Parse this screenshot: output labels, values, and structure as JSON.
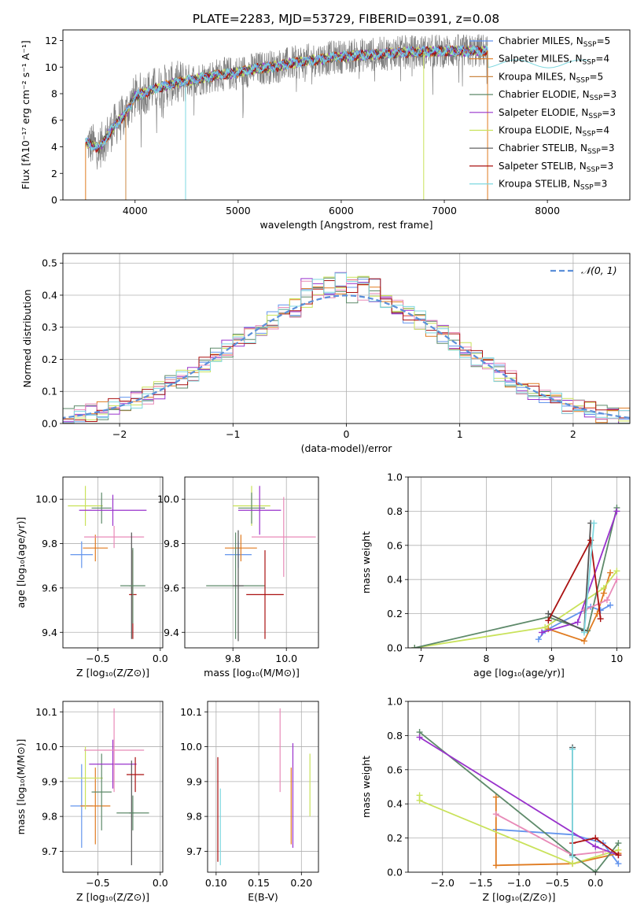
{
  "figure_title": "PLATE=2283, MJD=53729, FIBERID=0391, z=0.08",
  "colors": {
    "ChM": "#6495ED",
    "SaM": "#E07B20",
    "KrM": "#CC8844",
    "ChE": "#5E8A6A",
    "SaE": "#9932CC",
    "KrE": "#C9E25A",
    "ChS": "#555555",
    "SaS": "#AA1111",
    "KrS": "#7FD8E0",
    "pink": "#E88AB8"
  },
  "chart_data": [
    {
      "type": "line",
      "title": "PLATE=2283, MJD=53729, FIBERID=0391, z=0.08",
      "xlabel": "wavelength [Angstrom, rest frame]",
      "ylabel": "Flux [fλ10⁻¹⁷ erg cm⁻² s⁻¹ A⁻¹]",
      "xlim": [
        3300,
        8800
      ],
      "ylim": [
        0,
        12.8
      ],
      "xticks": [
        4000,
        5000,
        6000,
        7000,
        8000
      ],
      "yticks": [
        0,
        2,
        4,
        6,
        8,
        10,
        12
      ],
      "grid": false,
      "legend_position": "top-right",
      "legend": [
        {
          "label": "Chabrier MILES, N",
          "sub": "SSP",
          "suffix": "=5",
          "color": "ChM"
        },
        {
          "label": "Salpeter MILES, N",
          "sub": "SSP",
          "suffix": "=4",
          "color": "SaM"
        },
        {
          "label": "Kroupa MILES, N",
          "sub": "SSP",
          "suffix": "=5",
          "color": "KrM"
        },
        {
          "label": "Chabrier ELODIE, N",
          "sub": "SSP",
          "suffix": "=3",
          "color": "ChE"
        },
        {
          "label": "Salpeter ELODIE, N",
          "sub": "SSP",
          "suffix": "=3",
          "color": "SaE"
        },
        {
          "label": "Kroupa ELODIE, N",
          "sub": "SSP",
          "suffix": "=4",
          "color": "KrE"
        },
        {
          "label": "Chabrier STELIB, N",
          "sub": "SSP",
          "suffix": "=3",
          "color": "ChS"
        },
        {
          "label": "Salpeter STELIB, N",
          "sub": "SSP",
          "suffix": "=3",
          "color": "SaS"
        },
        {
          "label": "Kroupa STELIB, N",
          "sub": "SSP",
          "suffix": "=3",
          "color": "KrS"
        }
      ],
      "continuum": [
        [
          3540,
          4.3
        ],
        [
          3650,
          3.9
        ],
        [
          3800,
          5.6
        ],
        [
          3900,
          6.4
        ],
        [
          4000,
          7.8
        ],
        [
          4200,
          8.4
        ],
        [
          4400,
          8.8
        ],
        [
          4600,
          9.1
        ],
        [
          4800,
          9.4
        ],
        [
          5000,
          9.6
        ],
        [
          5200,
          9.9
        ],
        [
          5400,
          10.1
        ],
        [
          5600,
          10.4
        ],
        [
          5800,
          10.6
        ],
        [
          6000,
          10.8
        ],
        [
          6200,
          10.9
        ],
        [
          6400,
          11.0
        ],
        [
          6600,
          11.1
        ],
        [
          6800,
          11.15
        ],
        [
          7000,
          11.2
        ],
        [
          7200,
          11.2
        ],
        [
          7420,
          11.25
        ]
      ],
      "data_range": [
        3540,
        7420
      ],
      "model_range": [
        3500,
        8400
      ]
    },
    {
      "type": "bar",
      "xlabel": "(data-model)/error",
      "ylabel": "Normed distribution",
      "xlim": [
        -2.5,
        2.5
      ],
      "ylim": [
        0,
        0.53
      ],
      "xticks": [
        -2,
        -1,
        0,
        1,
        2
      ],
      "yticks": [
        0.0,
        0.1,
        0.2,
        0.3,
        0.4,
        0.5
      ],
      "grid": true,
      "legend_position": "top-right",
      "legend": [
        {
          "label": "𝒩(0, 1)",
          "color": "#5B8FD9"
        }
      ],
      "bin_width": 0.1,
      "gaussian": {
        "mu": 0,
        "sigma": 1
      }
    },
    {
      "type": "scatter",
      "xlabel": "Z [log₁₀(Z/Z⊙)]",
      "ylabel": "age  [log₁₀(age/yr)]",
      "xlim": [
        -0.78,
        0.02
      ],
      "ylim": [
        9.33,
        10.1
      ],
      "xticks": [
        -0.5,
        0.0
      ],
      "yticks": [
        9.4,
        9.6,
        9.8,
        10.0
      ],
      "grid": true,
      "points": [
        {
          "x": -0.63,
          "xerr": 0.09,
          "y": 9.75,
          "yerr": 0.06,
          "color": "ChM"
        },
        {
          "x": -0.52,
          "xerr": 0.1,
          "y": 9.78,
          "yerr": 0.06,
          "color": "SaM"
        },
        {
          "x": -0.6,
          "xerr": 0.14,
          "y": 9.97,
          "yerr": 0.09,
          "color": "KrE"
        },
        {
          "x": -0.47,
          "xerr": 0.08,
          "y": 9.96,
          "yerr": 0.07,
          "color": "ChE"
        },
        {
          "x": -0.38,
          "xerr": 0.27,
          "y": 9.95,
          "yerr": 0.07,
          "color": "SaE"
        },
        {
          "x": -0.37,
          "xerr": 0.24,
          "y": 9.83,
          "yerr": 0.05,
          "color": "pink"
        },
        {
          "x": -0.23,
          "xerr": 0.02,
          "y": 9.61,
          "yerr": 0.24,
          "color": "ChS"
        },
        {
          "x": -0.22,
          "xerr": 0.03,
          "y": 9.57,
          "yerr": 0.2,
          "color": "SaS"
        },
        {
          "x": -0.22,
          "xerr": 0.1,
          "y": 9.61,
          "yerr": 0.17,
          "color": "ChE"
        }
      ]
    },
    {
      "type": "scatter",
      "xlabel": "mass [log₁₀(M/M⊙)]",
      "ylabel": "",
      "xlim": [
        9.62,
        10.12
      ],
      "ylim": [
        9.33,
        10.1
      ],
      "xticks": [
        9.8,
        10.0
      ],
      "yticks": [
        9.4,
        9.6,
        9.8,
        10.0
      ],
      "grid": true,
      "points": [
        {
          "x": 9.82,
          "xerr": 0.05,
          "y": 9.75,
          "yerr": 0.06,
          "color": "ChM"
        },
        {
          "x": 9.83,
          "xerr": 0.06,
          "y": 9.78,
          "yerr": 0.06,
          "color": "SaM"
        },
        {
          "x": 9.87,
          "xerr": 0.07,
          "y": 9.97,
          "yerr": 0.09,
          "color": "KrE"
        },
        {
          "x": 9.87,
          "xerr": 0.05,
          "y": 9.96,
          "yerr": 0.07,
          "color": "ChE"
        },
        {
          "x": 9.9,
          "xerr": 0.08,
          "y": 9.95,
          "yerr": 0.11,
          "color": "SaE"
        },
        {
          "x": 9.99,
          "xerr": 0.12,
          "y": 9.83,
          "yerr": 0.18,
          "color": "pink"
        },
        {
          "x": 9.81,
          "xerr": 0.11,
          "y": 9.61,
          "yerr": 0.24,
          "color": "ChE"
        },
        {
          "x": 9.82,
          "xerr": 0.02,
          "y": 9.61,
          "yerr": 0.25,
          "color": "ChS"
        },
        {
          "x": 9.92,
          "xerr": 0.07,
          "y": 9.57,
          "yerr": 0.2,
          "color": "SaS"
        }
      ]
    },
    {
      "type": "line",
      "xlabel": "age  [log₁₀(age/yr)]",
      "ylabel": "mass weight",
      "xlim": [
        6.8,
        10.2
      ],
      "ylim": [
        0,
        1.0
      ],
      "xticks": [
        7,
        8,
        9,
        10
      ],
      "yticks": [
        0.0,
        0.2,
        0.4,
        0.6,
        0.8,
        1.0
      ],
      "grid": true,
      "series": [
        {
          "color": "ChM",
          "points": [
            [
              8.8,
              0.05
            ],
            [
              8.9,
              0.1
            ],
            [
              9.6,
              0.24
            ],
            [
              9.75,
              0.22
            ],
            [
              9.9,
              0.25
            ]
          ]
        },
        {
          "color": "SaM",
          "points": [
            [
              8.95,
              0.11
            ],
            [
              9.5,
              0.04
            ],
            [
              9.7,
              0.2
            ],
            [
              9.8,
              0.32
            ],
            [
              9.9,
              0.44
            ]
          ]
        },
        {
          "color": "KrE",
          "points": [
            [
              6.9,
              0.0
            ],
            [
              8.9,
              0.12
            ],
            [
              9.8,
              0.35
            ],
            [
              10.0,
              0.45
            ]
          ]
        },
        {
          "color": "ChE",
          "points": [
            [
              6.9,
              0.0
            ],
            [
              8.95,
              0.18
            ],
            [
              9.55,
              0.1
            ],
            [
              10.0,
              0.82
            ]
          ]
        },
        {
          "color": "SaE",
          "points": [
            [
              8.85,
              0.09
            ],
            [
              9.4,
              0.15
            ],
            [
              10.0,
              0.8
            ]
          ]
        },
        {
          "color": "pink",
          "points": [
            [
              9.5,
              0.22
            ],
            [
              9.85,
              0.28
            ],
            [
              10.0,
              0.4
            ]
          ]
        },
        {
          "color": "ChS",
          "points": [
            [
              8.95,
              0.2
            ],
            [
              9.5,
              0.1
            ],
            [
              9.6,
              0.73
            ]
          ]
        },
        {
          "color": "SaS",
          "points": [
            [
              8.95,
              0.16
            ],
            [
              9.6,
              0.63
            ],
            [
              9.75,
              0.17
            ]
          ]
        },
        {
          "color": "KrS",
          "points": [
            [
              9.5,
              0.09
            ],
            [
              9.65,
              0.73
            ]
          ]
        }
      ]
    },
    {
      "type": "scatter",
      "xlabel": "Z [log₁₀(Z/Z⊙)]",
      "ylabel": "mass [log₁₀(M/M⊙)]",
      "xlim": [
        -0.78,
        0.02
      ],
      "ylim": [
        9.64,
        10.13
      ],
      "xticks": [
        -0.5,
        0.0
      ],
      "yticks": [
        9.7,
        9.8,
        9.9,
        10.0,
        10.1
      ],
      "grid": true,
      "points": [
        {
          "x": -0.63,
          "xerr": 0.09,
          "y": 9.83,
          "yerr": 0.12,
          "color": "ChM"
        },
        {
          "x": -0.52,
          "xerr": 0.12,
          "y": 9.83,
          "yerr": 0.11,
          "color": "SaM"
        },
        {
          "x": -0.6,
          "xerr": 0.14,
          "y": 9.91,
          "yerr": 0.09,
          "color": "KrE"
        },
        {
          "x": -0.47,
          "xerr": 0.08,
          "y": 9.87,
          "yerr": 0.11,
          "color": "ChE"
        },
        {
          "x": -0.38,
          "xerr": 0.19,
          "y": 9.95,
          "yerr": 0.07,
          "color": "SaE"
        },
        {
          "x": -0.37,
          "xerr": 0.24,
          "y": 9.99,
          "yerr": 0.12,
          "color": "pink"
        },
        {
          "x": -0.23,
          "xerr": 0.02,
          "y": 9.81,
          "yerr": 0.15,
          "color": "ChS"
        },
        {
          "x": -0.2,
          "xerr": 0.07,
          "y": 9.92,
          "yerr": 0.05,
          "color": "SaS"
        },
        {
          "x": -0.22,
          "xerr": 0.13,
          "y": 9.81,
          "yerr": 0.05,
          "color": "ChE"
        }
      ]
    },
    {
      "type": "scatter",
      "xlabel": "E(B-V)",
      "ylabel": "",
      "xlim": [
        0.09,
        0.22
      ],
      "ylim": [
        9.64,
        10.13
      ],
      "xticks": [
        0.1,
        0.15,
        0.2
      ],
      "xtick_labels": [
        "0.10",
        "0.15",
        "0.20"
      ],
      "yticks": [
        9.7,
        9.8,
        9.9,
        10.0,
        10.1
      ],
      "grid": true,
      "points": [
        {
          "x": 0.102,
          "xerr": 0,
          "y": 9.82,
          "yerr": 0.15,
          "color": "SaS"
        },
        {
          "x": 0.105,
          "xerr": 0,
          "y": 9.77,
          "yerr": 0.11,
          "color": "KrS"
        },
        {
          "x": 0.175,
          "xerr": 0,
          "y": 9.99,
          "yerr": 0.12,
          "color": "pink"
        },
        {
          "x": 0.188,
          "xerr": 0,
          "y": 9.83,
          "yerr": 0.11,
          "color": "SaM"
        },
        {
          "x": 0.19,
          "xerr": 0,
          "y": 9.86,
          "yerr": 0.15,
          "color": "SaE"
        },
        {
          "x": 0.21,
          "xerr": 0,
          "y": 9.89,
          "yerr": 0.09,
          "color": "KrE"
        }
      ]
    },
    {
      "type": "line",
      "xlabel": "Z [log₁₀(Z/Z⊙)]",
      "ylabel": "mass weight",
      "xlim": [
        -2.45,
        0.45
      ],
      "ylim": [
        0,
        1.0
      ],
      "xticks": [
        -2.0,
        -1.5,
        -1.0,
        -0.5,
        0.0
      ],
      "yticks": [
        0.0,
        0.2,
        0.4,
        0.6,
        0.8,
        1.0
      ],
      "grid": true,
      "series": [
        {
          "color": "ChM",
          "points": [
            [
              -1.3,
              0.25
            ],
            [
              -0.3,
              0.22
            ],
            [
              0.1,
              0.17
            ],
            [
              0.3,
              0.05
            ]
          ]
        },
        {
          "color": "SaM",
          "points": [
            [
              -1.3,
              0.44
            ],
            [
              -1.3,
              0.04
            ],
            [
              -0.3,
              0.05
            ],
            [
              0.3,
              0.11
            ]
          ]
        },
        {
          "color": "KrE",
          "points": [
            [
              -2.3,
              0.45
            ],
            [
              -2.3,
              0.42
            ],
            [
              -0.3,
              0.05
            ],
            [
              0.3,
              0.13
            ]
          ]
        },
        {
          "color": "ChE",
          "points": [
            [
              -2.3,
              0.82
            ],
            [
              -0.3,
              0.1
            ],
            [
              0.0,
              0.0
            ],
            [
              0.3,
              0.17
            ]
          ]
        },
        {
          "color": "SaE",
          "points": [
            [
              -2.3,
              0.79
            ],
            [
              0.0,
              0.15
            ],
            [
              0.3,
              0.1
            ]
          ]
        },
        {
          "color": "pink",
          "points": [
            [
              -1.3,
              0.34
            ],
            [
              -0.3,
              0.1
            ],
            [
              0.1,
              0.12
            ]
          ]
        },
        {
          "color": "ChS",
          "points": [
            [
              -0.3,
              0.73
            ],
            [
              -0.3,
              0.1
            ]
          ]
        },
        {
          "color": "SaS",
          "points": [
            [
              -0.3,
              0.17
            ],
            [
              0.0,
              0.2
            ],
            [
              0.3,
              0.1
            ]
          ]
        },
        {
          "color": "KrS",
          "points": [
            [
              -0.3,
              0.72
            ],
            [
              -0.3,
              0.09
            ]
          ]
        }
      ]
    }
  ]
}
